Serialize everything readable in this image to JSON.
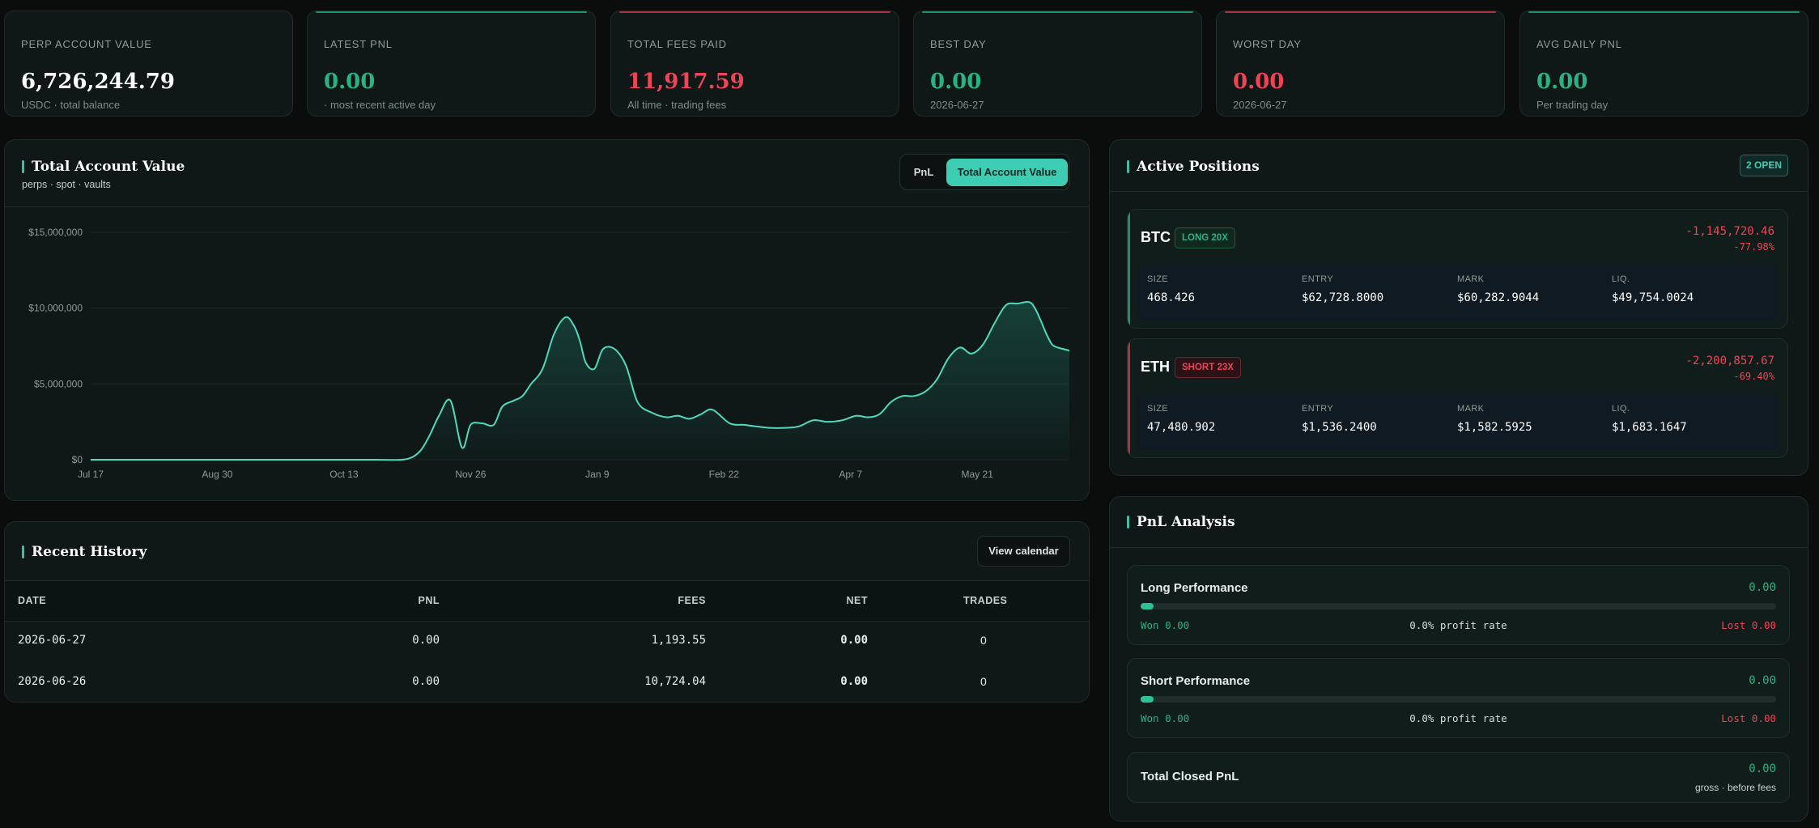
{
  "stats": [
    {
      "label": "PERP ACCOUNT VALUE",
      "value": "6,726,244.79",
      "sub": "USDC · total balance",
      "tone": "white",
      "accent": ""
    },
    {
      "label": "LATEST PNL",
      "value": "0.00",
      "sub": "· most recent active day",
      "tone": "pos",
      "accent": "#1f8f6c"
    },
    {
      "label": "TOTAL FEES PAID",
      "value": "11,917.59",
      "sub": "All time · trading fees",
      "tone": "neg",
      "accent": "#a83443"
    },
    {
      "label": "BEST DAY",
      "value": "0.00",
      "sub": "2026-06-27",
      "tone": "pos",
      "accent": "#1f8f6c"
    },
    {
      "label": "WORST DAY",
      "value": "0.00",
      "sub": "2026-06-27",
      "tone": "neg",
      "accent": "#a83443"
    },
    {
      "label": "AVG DAILY PNL",
      "value": "0.00",
      "sub": "Per trading day",
      "tone": "pos",
      "accent": "#1f8f6c"
    }
  ],
  "account_chart": {
    "title": "Total Account Value",
    "subtitle": "perps · spot · vaults",
    "toggle": {
      "pnl": "PnL",
      "total": "Total Account Value",
      "active": "total"
    }
  },
  "chart_data": {
    "type": "area",
    "title": "Total Account Value",
    "x_tick_labels": [
      "Jul 17",
      "Aug 30",
      "Oct 13",
      "Nov 26",
      "Jan 9",
      "Feb 22",
      "Apr 7",
      "May 21"
    ],
    "y_tick_labels": [
      "$15,000,000",
      "$10,000,000",
      "$5,000,000",
      "$0"
    ],
    "ylim": [
      0,
      15000000
    ],
    "line_color": "#4fd9bd",
    "grid": true,
    "series": [
      {
        "x": [
          0,
          22,
          44,
          66,
          88,
          99,
          108,
          112,
          115,
          118,
          121,
          125,
          129,
          132,
          136,
          140,
          143,
          147,
          150,
          153,
          157,
          161,
          165,
          168,
          170,
          172,
          175,
          178,
          182,
          186,
          190,
          195,
          200,
          204,
          208,
          212,
          216,
          222,
          227,
          231,
          236,
          241,
          246,
          251,
          256,
          261,
          266,
          270,
          274,
          278,
          282,
          286,
          290,
          294,
          298,
          302,
          306,
          310,
          314,
          318,
          322,
          326,
          328,
          330,
          332,
          334,
          336,
          340
        ],
        "y": [
          0,
          0,
          0,
          0,
          0,
          0,
          0,
          200000,
          700000,
          1700000,
          2900000,
          3900000,
          800000,
          2300000,
          2400000,
          2300000,
          3500000,
          3900000,
          4200000,
          5000000,
          6000000,
          8300000,
          9400000,
          8800000,
          7800000,
          6400000,
          6000000,
          7300000,
          7300000,
          6200000,
          3800000,
          3100000,
          2800000,
          2900000,
          2700000,
          3000000,
          3300000,
          2400000,
          2300000,
          2200000,
          2100000,
          2100000,
          2200000,
          2600000,
          2500000,
          2600000,
          2900000,
          2800000,
          3000000,
          3800000,
          4200000,
          4200000,
          4500000,
          5300000,
          6700000,
          7400000,
          7000000,
          7600000,
          9000000,
          10200000,
          10300000,
          10400000,
          10000000,
          9200000,
          8300000,
          7600000,
          7400000,
          7200000
        ]
      }
    ]
  },
  "history": {
    "title": "Recent History",
    "button": "View calendar",
    "columns": [
      "DATE",
      "PNL",
      "FEES",
      "NET",
      "TRADES"
    ],
    "rows": [
      {
        "date": "2026-06-27",
        "pnl": "0.00",
        "fees": "1,193.55",
        "net": "0.00",
        "trades": "0"
      },
      {
        "date": "2026-06-26",
        "pnl": "0.00",
        "fees": "10,724.04",
        "net": "0.00",
        "trades": "0"
      }
    ]
  },
  "positions": {
    "title": "Active Positions",
    "badge": "2 OPEN",
    "field_labels": {
      "size": "SIZE",
      "entry": "ENTRY",
      "mark": "MARK",
      "liq": "LIQ."
    },
    "items": [
      {
        "symbol": "BTC",
        "side": "LONG 20X",
        "side_type": "long",
        "pnl": "-1,145,720.46",
        "pct": "-77.98%",
        "size": "468.426",
        "entry": "$62,728.8000",
        "mark": "$60,282.9044",
        "liq": "$49,754.0024",
        "edge_color": "#1f8f6c"
      },
      {
        "symbol": "ETH",
        "side": "SHORT 23X",
        "side_type": "short",
        "pnl": "-2,200,857.67",
        "pct": "-69.40%",
        "size": "47,480.902",
        "entry": "$1,536.2400",
        "mark": "$1,582.5925",
        "liq": "$1,683.1647",
        "edge_color": "#a83443"
      }
    ]
  },
  "analysis": {
    "title": "PnL Analysis",
    "long": {
      "title": "Long Performance",
      "value": "0.00",
      "won": "Won 0.00",
      "rate": "0.0% profit rate",
      "lost": "Lost 0.00",
      "fill_fraction": 0.02
    },
    "short": {
      "title": "Short Performance",
      "value": "0.00",
      "won": "Won 0.00",
      "rate": "0.0% profit rate",
      "lost": "Lost 0.00",
      "fill_fraction": 0.02
    },
    "closed": {
      "title": "Total Closed PnL",
      "value": "0.00",
      "sub": "gross · before fees"
    }
  }
}
